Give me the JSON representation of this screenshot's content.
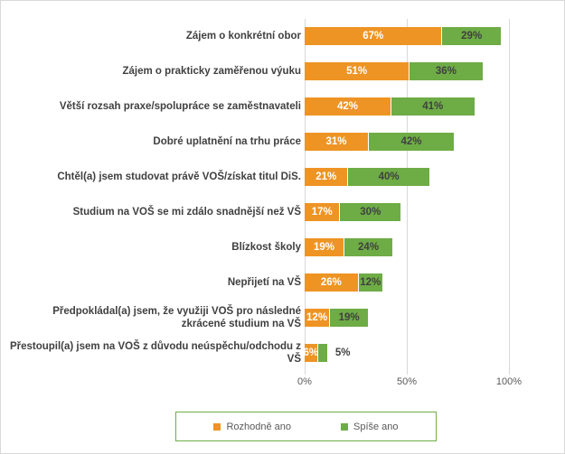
{
  "chart_data": {
    "type": "bar",
    "orientation": "horizontal",
    "stacked": true,
    "title": "",
    "categories": [
      "Zájem o konkrétní obor",
      "Zájem o prakticky zaměřenou výuku",
      "Větší rozsah praxe/spolupráce se zaměstnavateli",
      "Dobré uplatnění na trhu práce",
      "Chtěl(a) jsem studovat právě VOŠ/získat titul DiS.",
      "Studium na VOŠ se mi zdálo snadnější než VŠ",
      "Blízkost školy",
      "Nepřijetí na VŠ",
      "Předpokládal(a) jsem, že využiji VOŠ pro následné zkrácené studium na VŠ",
      "Přestoupil(a) jsem na VOŠ z důvodu neúspěchu/odchodu z VŠ"
    ],
    "series": [
      {
        "name": "Rozhodně ano",
        "color": "#EE9424",
        "label_color": "#FFFFFF",
        "values": [
          67,
          51,
          42,
          31,
          21,
          17,
          19,
          26,
          12,
          6
        ]
      },
      {
        "name": "Spíše ano",
        "color": "#6EAC46",
        "label_color": "#404040",
        "values": [
          29,
          36,
          41,
          42,
          40,
          30,
          24,
          12,
          19,
          5
        ]
      }
    ],
    "data_label_format": "{value}%",
    "x_axis": {
      "min": 0,
      "max": 100,
      "ticks": [
        {
          "label": "0%",
          "value": 0
        },
        {
          "label": "50%",
          "value": 50
        },
        {
          "label": "100%",
          "value": 100
        }
      ]
    },
    "gridlines": true,
    "legend_position": "bottom",
    "colors": {
      "grid": "#D9D9D9",
      "axis_text": "#595959",
      "category_text": "#404040",
      "legend_border": "#70AD47",
      "frame_border": "#D9D9D9"
    }
  }
}
